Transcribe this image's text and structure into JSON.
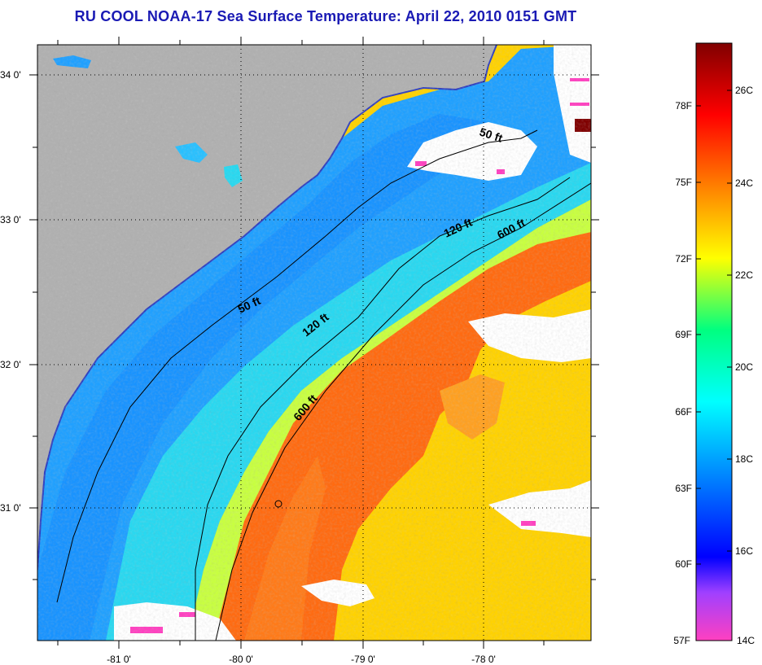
{
  "title": "RU COOL  NOAA-17  Sea Surface Temperature:  April 22, 2010 0151 GMT",
  "lat_labels": [
    "34 0'",
    "33 0'",
    "32 0'",
    "31 0'"
  ],
  "lon_labels": [
    "-81 0'",
    "-80 0'",
    "-79 0'",
    "-78 0'"
  ],
  "isobath_labels": {
    "n50": "50 ft",
    "s50": "50 ft",
    "n120": "120 ft",
    "s120": "120 ft",
    "n600": "600 ft",
    "s600": "600 ft"
  },
  "colorbar": {
    "f_labels": [
      "78F",
      "75F",
      "72F",
      "69F",
      "66F",
      "63F",
      "60F",
      "57F"
    ],
    "c_labels": [
      "26C",
      "24C",
      "22C",
      "20C",
      "18C",
      "16C",
      "14C"
    ],
    "colors": [
      "#ff40c0",
      "#a040ff",
      "#0000ff",
      "#0080ff",
      "#00ffff",
      "#00ff80",
      "#ffff00",
      "#ff8000",
      "#ff0000",
      "#800000"
    ]
  },
  "colors": {
    "land": "#b0b0b0",
    "cloud": "#ffffff",
    "title": "#1a1ab4"
  }
}
